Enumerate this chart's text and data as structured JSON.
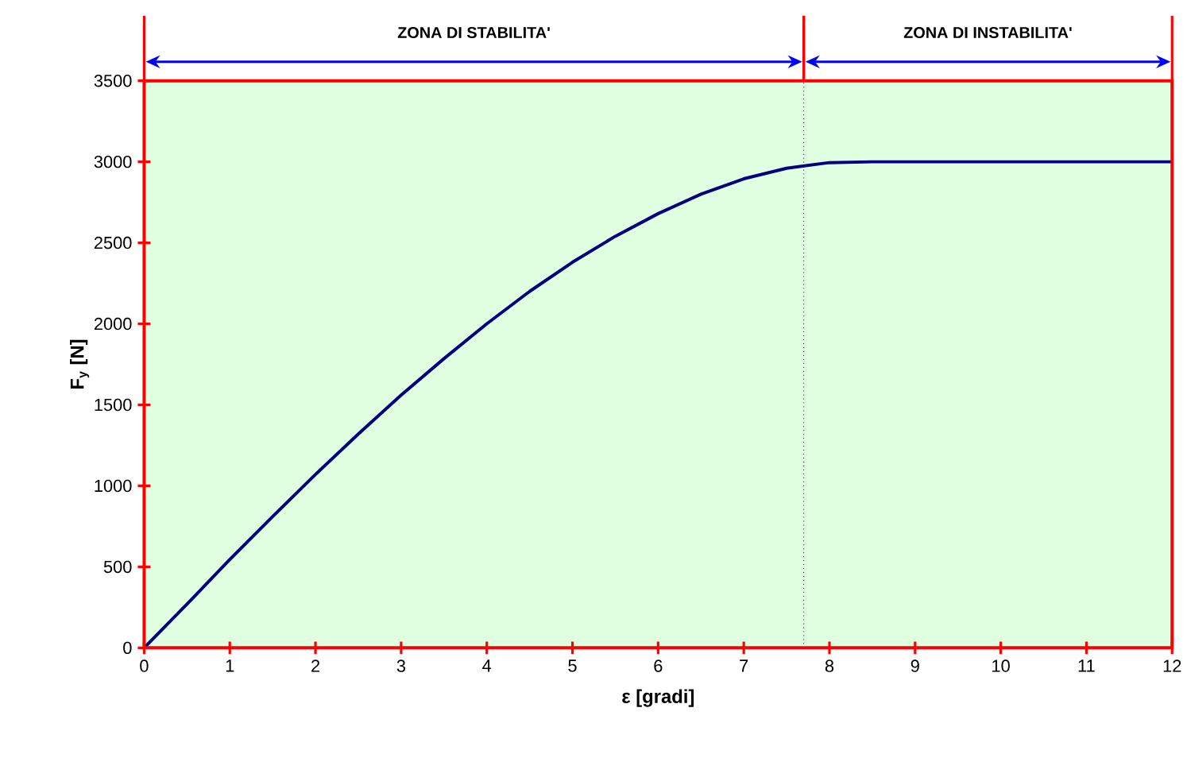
{
  "chart_data": {
    "type": "line",
    "xlabel": "ε [gradi]",
    "ylabel": "F$_{y}$  [N]",
    "x": [
      0,
      0.5,
      1,
      1.5,
      2,
      2.5,
      3,
      3.5,
      4,
      4.5,
      5,
      5.5,
      6,
      6.5,
      7,
      7.5,
      8,
      8.5,
      12
    ],
    "series": [
      {
        "color": "#000080",
        "values": [
          0,
          270,
          545,
          810,
          1070,
          1320,
          1560,
          1785,
          2000,
          2200,
          2380,
          2540,
          2680,
          2800,
          2895,
          2960,
          2995,
          3000,
          3000
        ]
      }
    ],
    "xlim": [
      0,
      12
    ],
    "ylim": [
      0,
      3500
    ],
    "xticks": [
      0,
      1,
      2,
      3,
      4,
      5,
      6,
      7,
      8,
      9,
      10,
      11,
      12
    ],
    "yticks": [
      0,
      500,
      1000,
      1500,
      2000,
      2500,
      3000,
      3500
    ],
    "bands": [
      {
        "axis": "x",
        "from": 0,
        "to": 7.7,
        "label": "ZONA DI STABILITA'",
        "color": "#e0ffe0"
      },
      {
        "axis": "x",
        "from": 7.7,
        "to": 12,
        "label": "ZONA DI INSTABILITA'",
        "color": "#e0ffe0"
      }
    ],
    "ref_lines": [
      {
        "axis": "x",
        "value": 7.7,
        "line_style": "dotted",
        "color": "#000000"
      }
    ],
    "marker": "none",
    "line_style": "solid"
  }
}
